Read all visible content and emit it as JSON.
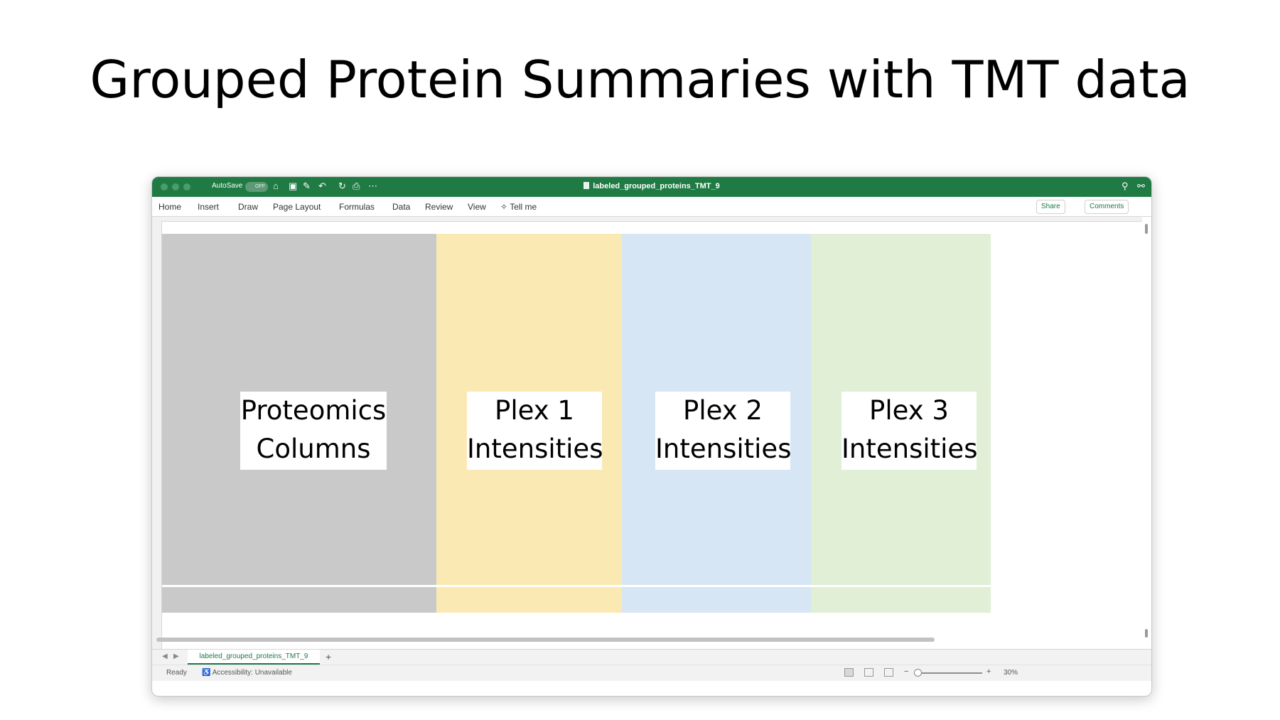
{
  "slide": {
    "title": "Grouped Protein Summaries with TMT data"
  },
  "window": {
    "autosave_label": "AutoSave",
    "autosave_state": "OFF",
    "document_title": "labeled_grouped_proteins_TMT_9",
    "title_icons": [
      "home-icon",
      "save-icon",
      "edit-icon",
      "undo-icon",
      "redo-icon",
      "print-icon",
      "more-icon",
      "search-icon",
      "share-icon"
    ]
  },
  "ribbon": {
    "tabs": [
      "Home",
      "Insert",
      "Draw",
      "Page Layout",
      "Formulas",
      "Data",
      "Review",
      "View"
    ],
    "tell_me": "Tell me",
    "share_label": "Share",
    "comments_label": "Comments"
  },
  "sheet": {
    "region_colors": {
      "proteomics": "#c9c9c9",
      "plex1": "#fbe9b4",
      "plex2": "#d6e6f4",
      "plex3": "#e0efd5"
    },
    "labels": {
      "proteomics_line1": "Proteomics",
      "proteomics_line2": "Columns",
      "plex1_line1": "Plex 1",
      "plex1_line2": "Intensities",
      "plex2_line1": "Plex 2",
      "plex2_line2": "Intensities",
      "plex3_line1": "Plex 3",
      "plex3_line2": "Intensities"
    }
  },
  "tabs_bar": {
    "sheet_tab": "labeled_grouped_proteins_TMT_9",
    "add_label": "+"
  },
  "status_bar": {
    "ready": "Ready",
    "accessibility": "Accessibility: Unavailable",
    "zoom": "30%"
  },
  "colors": {
    "accent": "#1f7a44"
  }
}
